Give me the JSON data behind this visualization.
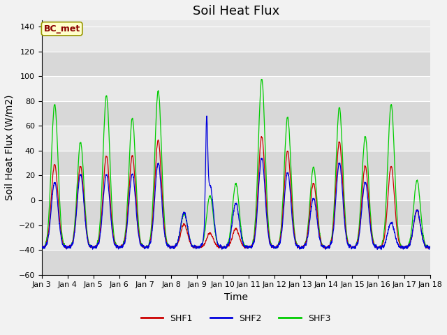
{
  "title": "Soil Heat Flux",
  "ylabel": "Soil Heat Flux (W/m2)",
  "xlabel": "Time",
  "ylim": [
    -60,
    145
  ],
  "yticks": [
    -60,
    -40,
    -20,
    0,
    20,
    40,
    60,
    80,
    100,
    120,
    140
  ],
  "xtick_labels": [
    "Jan 3",
    "Jan 4",
    "Jan 5",
    "Jan 6",
    "Jan 7",
    "Jan 8",
    "Jan 9",
    "Jan 10",
    "Jan 11",
    "Jan 12",
    "Jan 13",
    "Jan 14",
    "Jan 15",
    "Jan 16",
    "Jan 17",
    "Jan 18"
  ],
  "colors": {
    "SHF1": "#cc0000",
    "SHF2": "#0000dd",
    "SHF3": "#00cc00"
  },
  "legend_label": "BC_met",
  "legend_box_facecolor": "#ffffcc",
  "legend_box_edgecolor": "#999900",
  "plot_bg_color": "#e8e8e8",
  "fig_bg_color": "#f2f2f2",
  "grid_color": "#ffffff",
  "band_colors": [
    "#e0e0e0",
    "#cccccc"
  ],
  "title_fontsize": 13,
  "axis_label_fontsize": 10,
  "tick_fontsize": 8,
  "days": 15,
  "seed": 42
}
